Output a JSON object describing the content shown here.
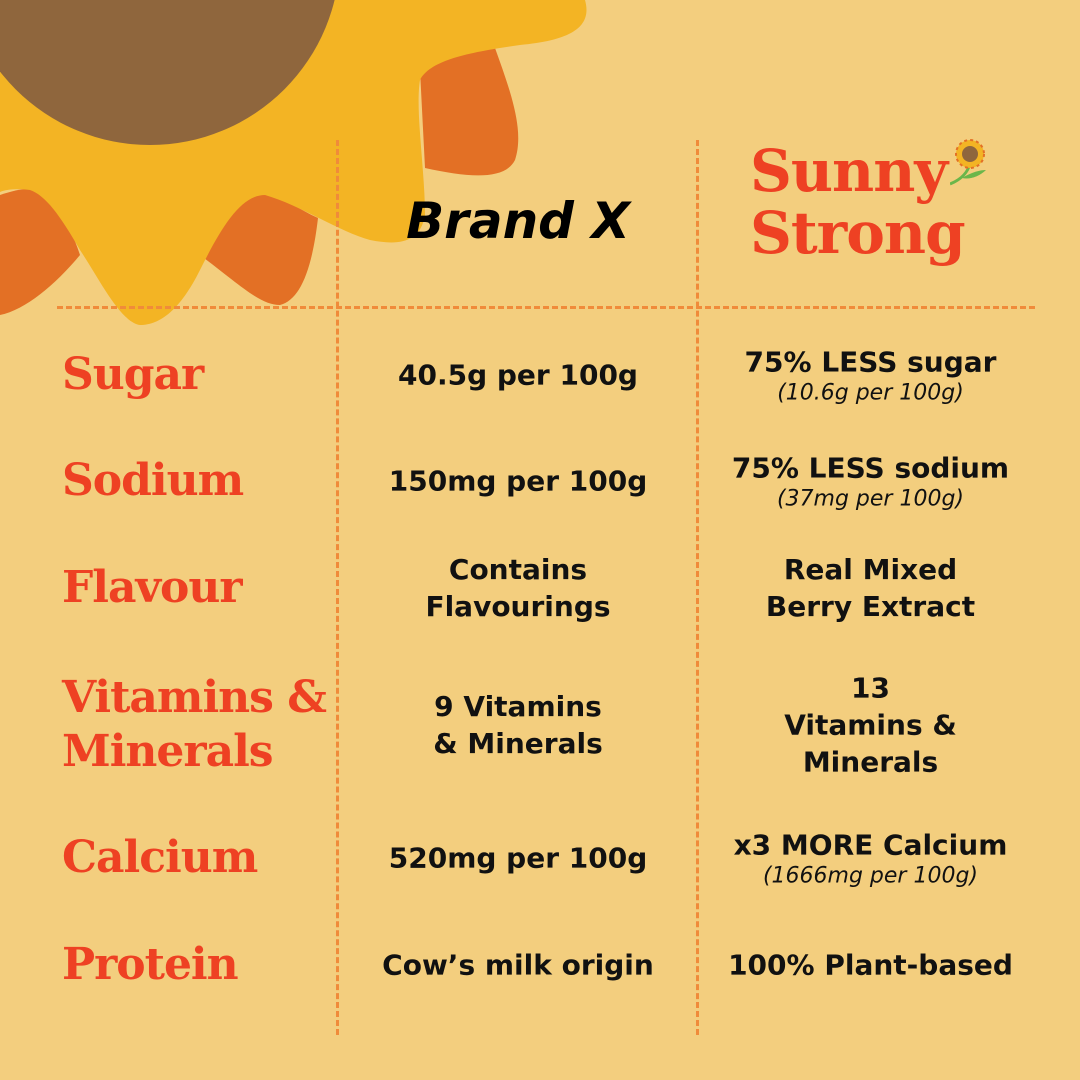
{
  "colors": {
    "background": "#F3CE7E",
    "sun_yellow": "#F3B424",
    "sun_center": "#8F663D",
    "sun_petal": "#E37025",
    "accent_red": "#EE4123",
    "dash": "#F08B3A"
  },
  "header": {
    "competitor": "Brand X",
    "brand_logo": "Sunny Strong"
  },
  "rows": [
    {
      "label": "Sugar",
      "brand_x": "40.5g per 100g",
      "sunny": "75% LESS sugar",
      "sunny_sub": "(10.6g per 100g)"
    },
    {
      "label": "Sodium",
      "brand_x": "150mg per 100g",
      "sunny": "75% LESS sodium",
      "sunny_sub": "(37mg per 100g)"
    },
    {
      "label": "Flavour",
      "brand_x": "Contains Flavourings",
      "sunny": "Real Mixed Berry Extract",
      "sunny_sub": ""
    },
    {
      "label": "Vitamins & Minerals",
      "brand_x": "9 Vitamins & Minerals",
      "sunny": "13 Vitamins & Minerals",
      "sunny_sub": ""
    },
    {
      "label": "Calcium",
      "brand_x": "520mg per 100g",
      "sunny": "x3 MORE Calcium",
      "sunny_sub": "(1666mg per 100g)"
    },
    {
      "label": "Protein",
      "brand_x": "Cow’s milk origin",
      "sunny": "100% Plant-based",
      "sunny_sub": ""
    }
  ]
}
